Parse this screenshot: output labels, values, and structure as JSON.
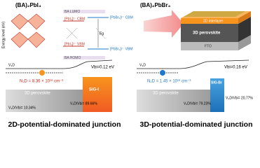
{
  "left": {
    "title": "(BA)₂PbI₄",
    "axis_label": "Energy level (eV)",
    "ba_lumo": "BA LUMO",
    "ba_homo": "BA HOMO",
    "pbi_cbm": "[PbI₄]²⁻ CBM",
    "pbi_vbm": "[PbI₄]²⁻ VBM",
    "pbbr_cbm": "[PbBr₄]²⁻ CBM",
    "pbbr_vbm": "[PbBr₄]²⁻ VBM",
    "eg": "Eg",
    "v3d": "V₃D",
    "vbi": "Vbi=0.12 eV",
    "n2d": "N₂D = 8.36 × 10¹⁶ cm⁻³",
    "layer": "SiG-I",
    "bulk": "3D perovskite",
    "v2d_ratio": "V₂D/Vbi= 89.66%",
    "v3d_ratio": "V₃D/Vbi= 10.34%",
    "caption": "2D-potential-dominated junction"
  },
  "right": {
    "title": "(BA)₂PbBr₄",
    "interlayer": "2D interlayer",
    "perovskite": "3D perovskite",
    "fto": "FTO",
    "v3d": "V₃D",
    "vbi": "Vbi=0.16 eV",
    "n2d": "N₂D = 1.45 × 10¹⁶ cm⁻³",
    "layer": "SIG-Br",
    "bulk": "3D perovskite",
    "v2d_ratio": "V₂D/Vbi= 79.23%",
    "v3d_ratio": "V₃D/Vbi= 20.77%",
    "caption": "3D-potential-dominated junction"
  }
}
